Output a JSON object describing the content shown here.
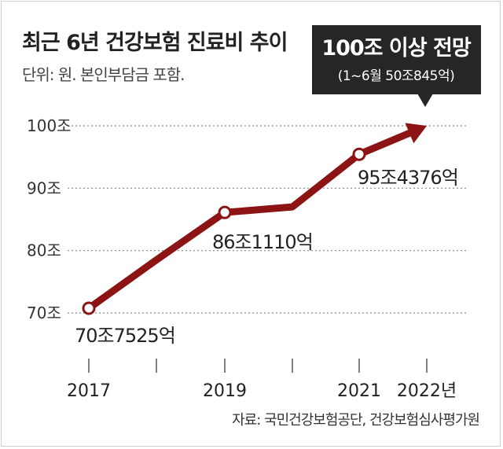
{
  "header": {
    "title": "최근 6년 건강보험 진료비 추이",
    "unit_note": "단위: 원. 본인부담금 포함."
  },
  "footer": {
    "source": "자료: 국민건강보험공단, 건강보험심사평가원"
  },
  "callout": {
    "title": "100조 이상 전망",
    "subtitle": "(1~6월 50조845억)"
  },
  "colors": {
    "line": "#8c1414",
    "point_fill": "#ffffff",
    "callout_bg": "#262626",
    "grid": "#888888"
  },
  "chart_data": {
    "type": "line",
    "title": "최근 6년 건강보험 진료비 추이",
    "y_unit": "조",
    "ylim": [
      70,
      100
    ],
    "y_ticks": [
      "70조",
      "80조",
      "90조",
      "100조"
    ],
    "y_tick_values": [
      70,
      80,
      90,
      100
    ],
    "x": [
      "2017",
      "2018",
      "2019",
      "2020",
      "2021",
      "2022"
    ],
    "x_tick_labels": [
      "2017",
      "",
      "2019",
      "",
      "2021",
      "2022년"
    ],
    "series": [
      {
        "values": [
          70.7525,
          78.5,
          86.111,
          87.0,
          95.4376,
          100.0
        ]
      }
    ],
    "labeled_points": [
      {
        "index": 0,
        "label": "70조7525억"
      },
      {
        "index": 2,
        "label": "86조1110억"
      },
      {
        "index": 4,
        "label": "95조4376억"
      }
    ],
    "grid": "horizontal dotted"
  }
}
